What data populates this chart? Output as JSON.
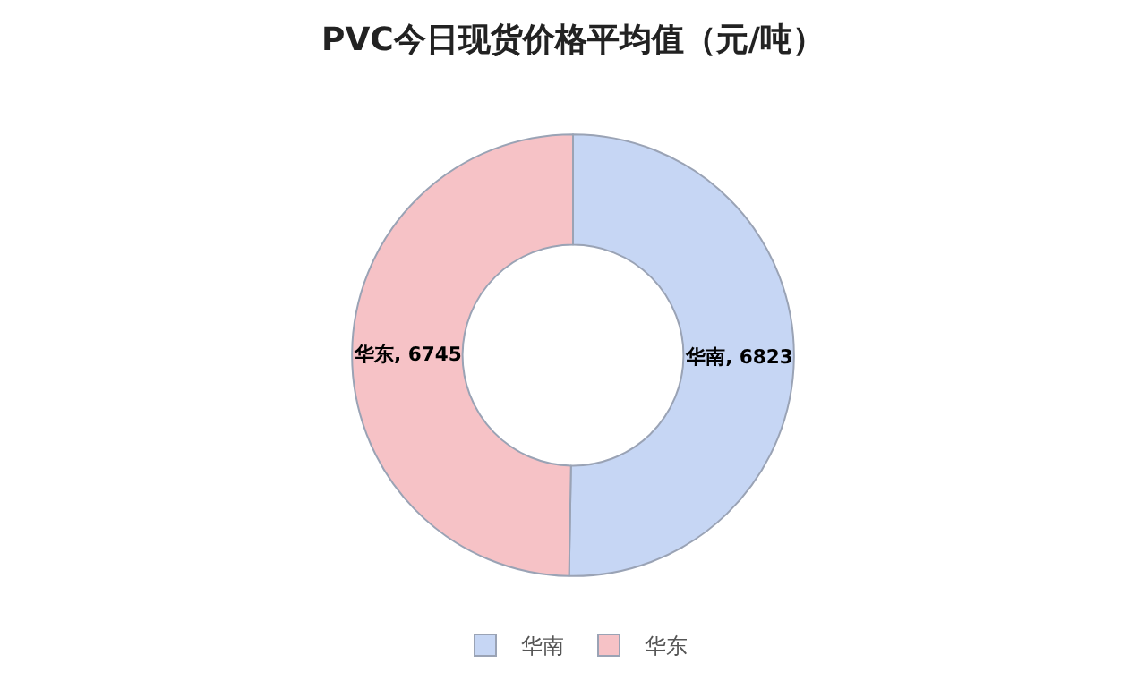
{
  "chart_data": {
    "type": "donut",
    "title": "PVC今日现货价格平均值（元/吨）",
    "categories": [
      "华南",
      "华东"
    ],
    "values": [
      6823,
      6745
    ],
    "colors": [
      "#c6d6f4",
      "#f6c2c6"
    ],
    "value_labels": [
      "华南, 6823",
      "华东, 6745"
    ],
    "legend": "bottom"
  }
}
